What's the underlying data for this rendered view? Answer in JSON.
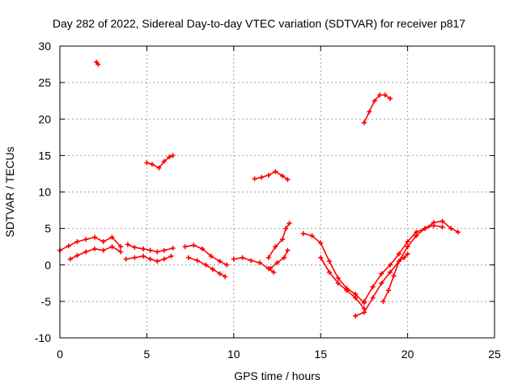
{
  "chart_data": {
    "type": "scatter",
    "title": "Day 282 of 2022, Sidereal Day-to-day VTEC variation (SDTVAR) for receiver p817",
    "xlabel": "GPS time / hours",
    "ylabel": "SDTVAR / TECUs",
    "xlim": [
      0,
      25
    ],
    "ylim": [
      -10,
      30
    ],
    "xticks": [
      0,
      5,
      10,
      15,
      20,
      25
    ],
    "yticks": [
      -10,
      -5,
      0,
      5,
      10,
      15,
      20,
      25,
      30
    ],
    "grid": true,
    "marker_color": "#ff0000",
    "series": [
      {
        "name": "seg1",
        "x": [
          0,
          0.5,
          1.0,
          1.5,
          2.0,
          2.5,
          3.0,
          3.5
        ],
        "y": [
          2,
          2.6,
          3.2,
          3.5,
          3.8,
          3.2,
          3.8,
          2.5
        ]
      },
      {
        "name": "seg2",
        "x": [
          0.6,
          1.0,
          1.5,
          2.0,
          2.5,
          3.0,
          3.5
        ],
        "y": [
          0.8,
          1.3,
          1.8,
          2.2,
          2.0,
          2.5,
          1.8
        ]
      },
      {
        "name": "seg3",
        "x": [
          2.1,
          2.2
        ],
        "y": [
          27.8,
          27.5
        ]
      },
      {
        "name": "seg4",
        "x": [
          3.9,
          4.3,
          4.8,
          5.2,
          5.6,
          6.0,
          6.5
        ],
        "y": [
          2.8,
          2.4,
          2.2,
          2.0,
          1.8,
          2.0,
          2.3
        ]
      },
      {
        "name": "seg5",
        "x": [
          3.8,
          4.3,
          4.8,
          5.2,
          5.6,
          6.0,
          6.4
        ],
        "y": [
          0.8,
          1.0,
          1.2,
          0.8,
          0.5,
          0.8,
          1.2
        ]
      },
      {
        "name": "seg6",
        "x": [
          5.0,
          5.3,
          5.7,
          6.0,
          6.3,
          6.5
        ],
        "y": [
          14.0,
          13.8,
          13.3,
          14.2,
          14.8,
          15.0
        ]
      },
      {
        "name": "seg7",
        "x": [
          7.2,
          7.7,
          8.2,
          8.7,
          9.2,
          9.6
        ],
        "y": [
          2.5,
          2.7,
          2.2,
          1.2,
          0.5,
          0.0
        ]
      },
      {
        "name": "seg8",
        "x": [
          7.4,
          7.9,
          8.4,
          8.8,
          9.2,
          9.5
        ],
        "y": [
          1.0,
          0.6,
          0.0,
          -0.6,
          -1.2,
          -1.6
        ]
      },
      {
        "name": "seg9",
        "x": [
          10.0,
          10.5,
          11.0,
          11.5,
          12.0,
          12.3
        ],
        "y": [
          0.8,
          1.0,
          0.6,
          0.3,
          -0.5,
          -1.0
        ]
      },
      {
        "name": "seg10",
        "x": [
          11.2,
          11.6,
          12.0,
          12.4,
          12.8,
          13.1
        ],
        "y": [
          11.8,
          12.0,
          12.3,
          12.8,
          12.2,
          11.7
        ]
      },
      {
        "name": "seg11",
        "x": [
          12.0,
          12.4,
          12.8,
          13.0,
          13.2
        ],
        "y": [
          1.0,
          2.5,
          3.5,
          5.0,
          5.7
        ]
      },
      {
        "name": "seg12",
        "x": [
          12.1,
          12.5,
          12.9,
          13.1
        ],
        "y": [
          -0.5,
          0.3,
          1.0,
          2.0
        ]
      },
      {
        "name": "seg13",
        "x": [
          14.0,
          14.5,
          15.0,
          15.5,
          16.0,
          16.5,
          17.0,
          17.5
        ],
        "y": [
          4.3,
          4.0,
          3.0,
          0.5,
          -1.8,
          -3.2,
          -4.0,
          -5.2
        ]
      },
      {
        "name": "seg14",
        "x": [
          15.0,
          15.5,
          16.0,
          16.5,
          17.0,
          17.5
        ],
        "y": [
          1.0,
          -1.0,
          -2.5,
          -3.5,
          -4.5,
          -6.0
        ]
      },
      {
        "name": "seg15",
        "x": [
          17.5,
          17.8,
          18.1,
          18.4,
          18.7,
          19.0
        ],
        "y": [
          19.5,
          21.0,
          22.5,
          23.3,
          23.3,
          22.8
        ]
      },
      {
        "name": "seg16",
        "x": [
          17.0,
          17.5,
          18.0,
          18.5,
          19.0,
          19.5,
          20.0,
          20.5,
          21.0,
          21.5,
          22.0,
          22.5,
          22.9
        ],
        "y": [
          -7.0,
          -6.5,
          -4.5,
          -2.5,
          -1.0,
          0.5,
          2.5,
          4.0,
          5.0,
          5.8,
          6.0,
          5.0,
          4.5
        ]
      },
      {
        "name": "seg17",
        "x": [
          17.5,
          18.0,
          18.5,
          19.0,
          19.5,
          20.0,
          20.5,
          21.0,
          21.5,
          22.0
        ],
        "y": [
          -5.0,
          -3.0,
          -1.2,
          0.0,
          1.5,
          3.2,
          4.5,
          5.0,
          5.4,
          5.2
        ]
      },
      {
        "name": "seg18",
        "x": [
          18.6,
          18.9,
          19.2,
          19.5,
          19.8,
          20.0
        ],
        "y": [
          -5.0,
          -3.5,
          -1.5,
          0.5,
          1.0,
          1.5
        ]
      }
    ]
  }
}
